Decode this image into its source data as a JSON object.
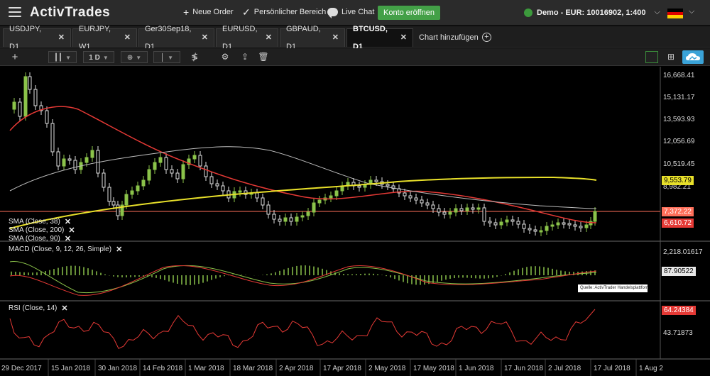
{
  "topbar": {
    "logo": "ActivTrades",
    "new_order": "Neue Order",
    "personal_area": "Persönlicher Bereich",
    "live_chat": "Live Chat",
    "open_account": "Konto eröffnen",
    "account": "Demo - EUR: 10016902, 1:400",
    "flag_colors": [
      "#000000",
      "#dd0000",
      "#ffce00"
    ]
  },
  "tabs": [
    {
      "label": "USDJPY, D1"
    },
    {
      "label": "EURJPY, W1"
    },
    {
      "label": "Ger30Sep18, D1"
    },
    {
      "label": "EURUSD, D1"
    },
    {
      "label": "GBPAUD, D1"
    },
    {
      "label": "BTCUSD, D1"
    }
  ],
  "add_chart": "Chart hinzufügen",
  "toolbar": {
    "timeframe": "1 D",
    "icons": [
      "crosshair-icon",
      "candlestick-icon",
      "timeframe-select",
      "add-indicator-icon",
      "line-style-icon",
      "fibonacci-icon",
      "settings-icon",
      "share-icon",
      "delete-icon",
      "layout-single-icon",
      "layout-split-icon",
      "cloud-icon"
    ]
  },
  "chart": {
    "symbol": "BTCUSD",
    "price_axis": [
      "16,668.41",
      "15,131.17",
      "13,593.93",
      "12,056.69",
      "10,519.45",
      "8,982.21"
    ],
    "price_tags": {
      "sma200": "9,553.79",
      "last": "7,372.22",
      "sma38": "6,610.72"
    },
    "macd_axis": [
      "2,218.01617",
      "87.90522"
    ],
    "rsi_axis": [
      "64.24384",
      "43.71873"
    ],
    "legends": {
      "sma38": "SMA (Close, 38)",
      "sma200": "SMA (Close, 200)",
      "sma90": "SMA (Close, 90)",
      "macd": "MACD (Close, 9, 12, 26, Simple)",
      "rsi": "RSI (Close, 14)"
    },
    "source": "Quelle: ActivTrader Handelsplattform",
    "x_axis": [
      "29 Dec 2017",
      "15 Jan 2018",
      "30 Jan 2018",
      "14 Feb 2018",
      "1 Mar 2018",
      "18 Mar 2018",
      "2 Apr 2018",
      "17 Apr 2018",
      "2 May 2018",
      "17 May 2018",
      "1 Jun 2018",
      "17 Jun 2018",
      "2 Jul 2018",
      "17 Jul 2018",
      "1 Aug 2"
    ],
    "colors": {
      "sma38": "#e53935",
      "sma200": "#e8e02a",
      "sma90": "#bdbdbd",
      "bull": "#8bc34a",
      "bear": "#e0e0e0",
      "last_price": "#ff6f5a"
    }
  }
}
